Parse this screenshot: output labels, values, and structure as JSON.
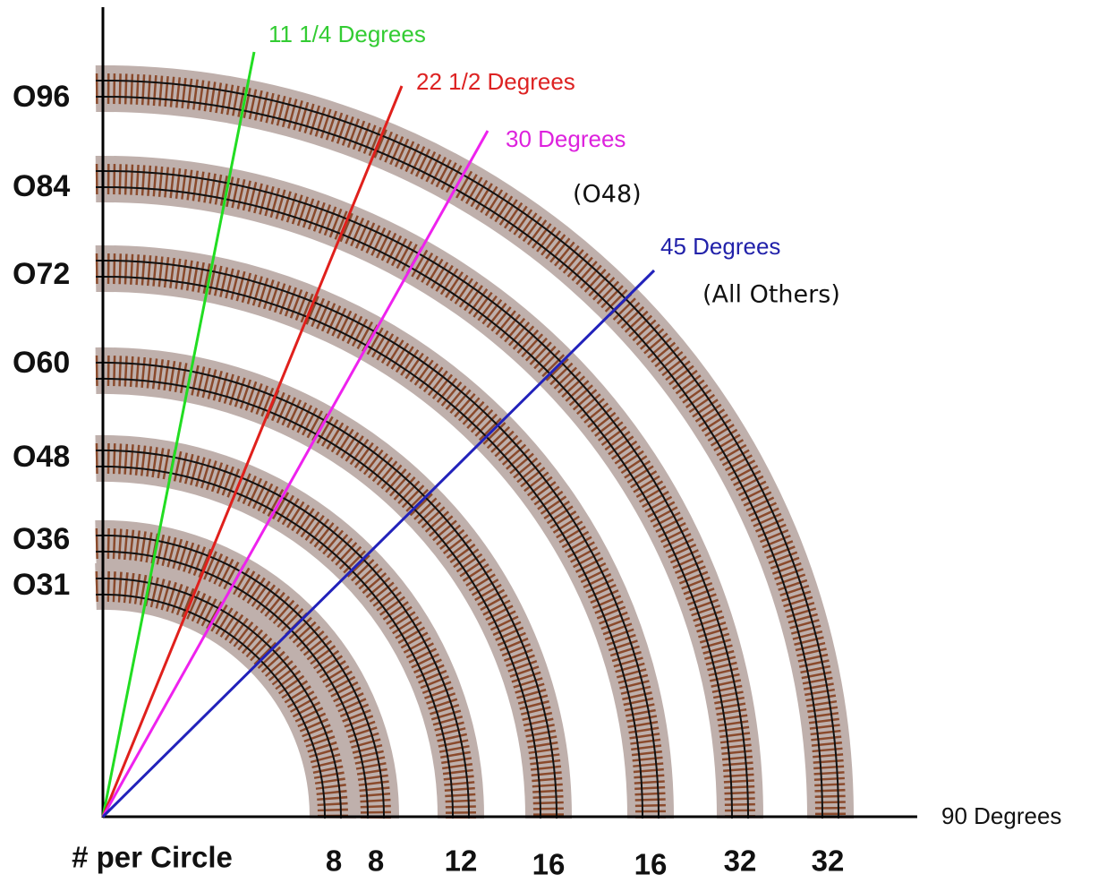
{
  "curve_labels": [
    "O96",
    "O84",
    "O72",
    "O60",
    "O48",
    "O36",
    "O31"
  ],
  "angle_labels": [
    "11 1/4 Degrees",
    "22 1/2 Degrees",
    "30 Degrees",
    "45 Degrees",
    "90 Degrees"
  ],
  "notes": [
    "(O48)",
    "(All Others)"
  ],
  "count_title": "# per Circle",
  "counts": [
    8,
    8,
    12,
    16,
    16,
    32,
    32
  ]
}
